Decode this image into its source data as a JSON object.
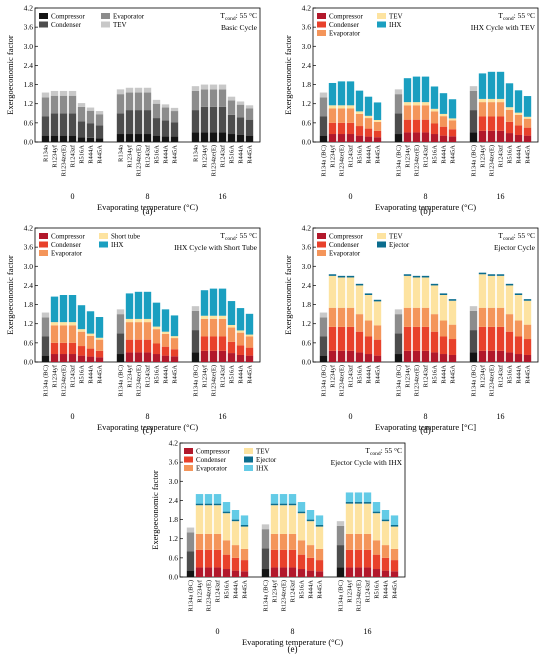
{
  "figure": {
    "panel_labels": [
      "(a)",
      "(b)",
      "(c)",
      "(d)",
      "(e)"
    ]
  },
  "colors": {
    "compressor_gray": "#141414",
    "condenser_gray": "#4d4d4d",
    "evaporator_gray": "#8c8c8c",
    "tev_gray": "#c8c8c8",
    "compressor": "#b2182b",
    "condenser": "#e8412b",
    "evaporator": "#f4955a",
    "tev": "#fde3a0",
    "short_tube": "#fde3a0",
    "ejector": "#0b6d8e",
    "ihx_b": "#1a9fc0",
    "ihx_e": "#63cbe6",
    "bc_compressor": "#141414",
    "bc_condenser": "#4d4d4d",
    "bc_evaporator": "#8c8c8c",
    "bc_tev": "#c8c8c8"
  },
  "chart_data": [
    {
      "type": "bar",
      "stacked": true,
      "panel": "(a)",
      "title": "Basic Cycle",
      "condition": "T",
      "condition_sub": "cond",
      "condition_val": ": 55 °C",
      "xlabel": "Evaporating temperature (°C)",
      "ylabel": "Exergoeconomic factor",
      "ylim": [
        0,
        4.2
      ],
      "yticks": [
        "0.0",
        "0.6",
        "1.2",
        "1.8",
        "2.4",
        "3.0",
        "3.6",
        "4.2"
      ],
      "groups": [
        "0",
        "8",
        "16"
      ],
      "categories": [
        "R134a",
        "R1234yf",
        "R1234ze(E)",
        "R1243zf",
        "R516A",
        "R444A",
        "R445A"
      ],
      "legend_placement": "top-left",
      "series": [
        {
          "name": "Compressor",
          "color": "compressor_gray",
          "values": [
            [
              0.2,
              0.2,
              0.2,
              0.2,
              0.15,
              0.13,
              0.12
            ],
            [
              0.25,
              0.25,
              0.25,
              0.25,
              0.2,
              0.18,
              0.17
            ],
            [
              0.3,
              0.3,
              0.3,
              0.3,
              0.25,
              0.22,
              0.2
            ]
          ]
        },
        {
          "name": "Condenser",
          "color": "condenser_gray",
          "values": [
            [
              0.6,
              0.7,
              0.7,
              0.7,
              0.5,
              0.45,
              0.4
            ],
            [
              0.65,
              0.75,
              0.75,
              0.75,
              0.55,
              0.5,
              0.45
            ],
            [
              0.7,
              0.8,
              0.8,
              0.8,
              0.6,
              0.55,
              0.5
            ]
          ]
        },
        {
          "name": "Evaporator",
          "color": "evaporator_gray",
          "values": [
            [
              0.6,
              0.55,
              0.55,
              0.55,
              0.45,
              0.4,
              0.35
            ],
            [
              0.6,
              0.55,
              0.55,
              0.55,
              0.45,
              0.4,
              0.35
            ],
            [
              0.6,
              0.55,
              0.55,
              0.55,
              0.45,
              0.4,
              0.35
            ]
          ]
        },
        {
          "name": "TEV",
          "color": "tev_gray",
          "values": [
            [
              0.15,
              0.15,
              0.15,
              0.15,
              0.12,
              0.1,
              0.1
            ],
            [
              0.15,
              0.15,
              0.15,
              0.15,
              0.12,
              0.1,
              0.1
            ],
            [
              0.15,
              0.15,
              0.15,
              0.15,
              0.12,
              0.1,
              0.1
            ]
          ]
        }
      ]
    },
    {
      "type": "bar",
      "stacked": true,
      "panel": "(b)",
      "title": "IHX Cycle with TEV",
      "condition": "T",
      "condition_sub": "cond",
      "condition_val": ": 55 °C",
      "xlabel": "Evaporating temperature (°C)",
      "ylabel": "Exergoeconomic factor",
      "ylim": [
        0,
        4.2
      ],
      "yticks": [
        "0.0",
        "0.6",
        "1.2",
        "1.8",
        "2.4",
        "3.0",
        "3.6",
        "4.2"
      ],
      "groups": [
        "0",
        "8",
        "16"
      ],
      "categories": [
        "R134a (BC)",
        "R1234yf",
        "R1234ze(E)",
        "R1243zf",
        "R516A",
        "R444A",
        "R445A"
      ],
      "legend_placement": "top-left",
      "series": [
        {
          "name": "Compressor",
          "color": "compressor",
          "values": [
            [
              0.2,
              0.25,
              0.25,
              0.25,
              0.2,
              0.17,
              0.15
            ],
            [
              0.25,
              0.3,
              0.3,
              0.3,
              0.25,
              0.2,
              0.18
            ],
            [
              0.3,
              0.35,
              0.35,
              0.35,
              0.28,
              0.22,
              0.2
            ]
          ]
        },
        {
          "name": "Condenser",
          "color": "condenser",
          "values": [
            [
              0.6,
              0.35,
              0.35,
              0.35,
              0.3,
              0.25,
              0.2
            ],
            [
              0.65,
              0.4,
              0.4,
              0.4,
              0.33,
              0.28,
              0.22
            ],
            [
              0.7,
              0.45,
              0.45,
              0.45,
              0.35,
              0.3,
              0.25
            ]
          ]
        },
        {
          "name": "Evaporator",
          "color": "evaporator",
          "values": [
            [
              0.6,
              0.45,
              0.45,
              0.45,
              0.38,
              0.33,
              0.28
            ],
            [
              0.6,
              0.45,
              0.45,
              0.45,
              0.38,
              0.33,
              0.28
            ],
            [
              0.6,
              0.45,
              0.45,
              0.45,
              0.38,
              0.33,
              0.28
            ]
          ]
        },
        {
          "name": "TEV",
          "color": "tev",
          "values": [
            [
              0.15,
              0.1,
              0.1,
              0.1,
              0.08,
              0.07,
              0.06
            ],
            [
              0.15,
              0.1,
              0.1,
              0.1,
              0.08,
              0.07,
              0.06
            ],
            [
              0.15,
              0.1,
              0.1,
              0.1,
              0.08,
              0.07,
              0.06
            ]
          ]
        },
        {
          "name": "IHX",
          "color": "ihx_b",
          "values": [
            [
              0,
              0.7,
              0.75,
              0.75,
              0.65,
              0.6,
              0.55
            ],
            [
              0,
              0.75,
              0.8,
              0.8,
              0.7,
              0.65,
              0.6
            ],
            [
              0,
              0.8,
              0.85,
              0.85,
              0.75,
              0.7,
              0.65
            ]
          ]
        }
      ]
    },
    {
      "type": "bar",
      "stacked": true,
      "panel": "(c)",
      "title": "IHX Cycle with Short Tube",
      "condition": "T",
      "condition_sub": "cond",
      "condition_val": ": 55 °C",
      "xlabel": "Evaporating temperature (°C)",
      "ylabel": "Exergoeconomic factor",
      "ylim": [
        0,
        4.2
      ],
      "yticks": [
        "0.0",
        "0.6",
        "1.2",
        "1.8",
        "2.4",
        "3.0",
        "3.6",
        "4.2"
      ],
      "groups": [
        "0",
        "8",
        "16"
      ],
      "categories": [
        "R134a (BC)",
        "R1234yf",
        "R1234ze(E)",
        "R1243zf",
        "R516A",
        "R444A",
        "R445A"
      ],
      "legend_placement": "top-left",
      "series": [
        {
          "name": "Compressor",
          "color": "compressor",
          "values": [
            [
              0.2,
              0.25,
              0.25,
              0.25,
              0.2,
              0.17,
              0.15
            ],
            [
              0.25,
              0.3,
              0.3,
              0.3,
              0.25,
              0.2,
              0.18
            ],
            [
              0.3,
              0.35,
              0.35,
              0.35,
              0.28,
              0.22,
              0.2
            ]
          ]
        },
        {
          "name": "Condenser",
          "color": "condenser",
          "values": [
            [
              0.6,
              0.35,
              0.35,
              0.35,
              0.3,
              0.25,
              0.2
            ],
            [
              0.65,
              0.4,
              0.4,
              0.4,
              0.33,
              0.28,
              0.22
            ],
            [
              0.7,
              0.45,
              0.45,
              0.45,
              0.35,
              0.3,
              0.25
            ]
          ]
        },
        {
          "name": "Evaporator",
          "color": "evaporator",
          "values": [
            [
              0.6,
              0.55,
              0.55,
              0.55,
              0.45,
              0.4,
              0.35
            ],
            [
              0.6,
              0.55,
              0.55,
              0.55,
              0.45,
              0.4,
              0.35
            ],
            [
              0.6,
              0.55,
              0.55,
              0.55,
              0.45,
              0.4,
              0.35
            ]
          ]
        },
        {
          "name": "Short tube",
          "color": "short_tube",
          "values": [
            [
              0.15,
              0.1,
              0.1,
              0.1,
              0.08,
              0.07,
              0.06
            ],
            [
              0.15,
              0.1,
              0.1,
              0.1,
              0.08,
              0.07,
              0.06
            ],
            [
              0.15,
              0.1,
              0.1,
              0.1,
              0.08,
              0.07,
              0.06
            ]
          ]
        },
        {
          "name": "IHX",
          "color": "ihx_b",
          "values": [
            [
              0,
              0.8,
              0.85,
              0.85,
              0.75,
              0.7,
              0.65
            ],
            [
              0,
              0.8,
              0.85,
              0.85,
              0.75,
              0.7,
              0.65
            ],
            [
              0,
              0.8,
              0.85,
              0.85,
              0.75,
              0.7,
              0.65
            ]
          ]
        }
      ]
    },
    {
      "type": "bar",
      "stacked": true,
      "panel": "(d)",
      "title": "Ejector Cycle",
      "condition": "T",
      "condition_sub": "cond",
      "condition_val": ": 55 °C",
      "xlabel": "Evaporating temperature [°C]",
      "ylabel": "Exergoeconomic factor",
      "ylim": [
        0,
        4.2
      ],
      "yticks": [
        "0.0",
        "0.6",
        "1.2",
        "1.8",
        "2.4",
        "3.0",
        "3.6",
        "4.2"
      ],
      "groups": [
        "0",
        "8",
        "16"
      ],
      "categories": [
        "R134a (BC)",
        "R1234yf",
        "R1234ze(E)",
        "R1243zf",
        "R516A",
        "R444A",
        "R445A"
      ],
      "legend_placement": "top-left",
      "series": [
        {
          "name": "Compressor",
          "color": "compressor",
          "values": [
            [
              0.2,
              0.35,
              0.35,
              0.35,
              0.3,
              0.25,
              0.2
            ],
            [
              0.25,
              0.35,
              0.35,
              0.35,
              0.3,
              0.25,
              0.22
            ],
            [
              0.3,
              0.35,
              0.35,
              0.35,
              0.3,
              0.25,
              0.22
            ]
          ]
        },
        {
          "name": "Condenser",
          "color": "condenser",
          "values": [
            [
              0.6,
              0.75,
              0.75,
              0.75,
              0.65,
              0.55,
              0.5
            ],
            [
              0.65,
              0.75,
              0.75,
              0.75,
              0.65,
              0.55,
              0.5
            ],
            [
              0.7,
              0.75,
              0.75,
              0.75,
              0.65,
              0.55,
              0.5
            ]
          ]
        },
        {
          "name": "Evaporator",
          "color": "evaporator",
          "values": [
            [
              0.6,
              0.6,
              0.6,
              0.6,
              0.55,
              0.5,
              0.45
            ],
            [
              0.6,
              0.6,
              0.6,
              0.6,
              0.55,
              0.5,
              0.45
            ],
            [
              0.6,
              0.6,
              0.6,
              0.6,
              0.55,
              0.5,
              0.45
            ]
          ]
        },
        {
          "name": "TEV",
          "color": "tev",
          "values": [
            [
              0.15,
              1.0,
              0.95,
              0.95,
              0.9,
              0.8,
              0.75
            ],
            [
              0.15,
              1.0,
              0.95,
              0.95,
              0.9,
              0.8,
              0.75
            ],
            [
              0.15,
              1.05,
              1.0,
              1.0,
              0.9,
              0.8,
              0.75
            ]
          ]
        },
        {
          "name": "Ejector",
          "color": "ejector",
          "values": [
            [
              0,
              0.05,
              0.05,
              0.05,
              0.05,
              0.05,
              0.05
            ],
            [
              0,
              0.05,
              0.05,
              0.05,
              0.05,
              0.05,
              0.05
            ],
            [
              0,
              0.05,
              0.05,
              0.05,
              0.05,
              0.05,
              0.05
            ]
          ]
        }
      ]
    },
    {
      "type": "bar",
      "stacked": true,
      "panel": "(e)",
      "title": "Ejector Cycle with IHX",
      "condition": "T",
      "condition_sub": "cond",
      "condition_val": ": 55 °C",
      "xlabel": "Evaporating temperature (°C)",
      "ylabel": "Exergoeconomic factor",
      "ylim": [
        0,
        4.2
      ],
      "yticks": [
        "0.0",
        "0.6",
        "1.2",
        "1.8",
        "2.4",
        "3.0",
        "3.6",
        "4.2"
      ],
      "groups": [
        "0",
        "8",
        "16"
      ],
      "categories": [
        "R134a (BC)",
        "R1234yf",
        "R1234ze(E)",
        "R1243zf",
        "R516A",
        "R444A",
        "R445A"
      ],
      "legend_placement": "top-left",
      "series": [
        {
          "name": "Compressor",
          "color": "compressor",
          "values": [
            [
              0.2,
              0.3,
              0.3,
              0.3,
              0.25,
              0.2,
              0.18
            ],
            [
              0.25,
              0.3,
              0.3,
              0.3,
              0.25,
              0.2,
              0.18
            ],
            [
              0.3,
              0.3,
              0.3,
              0.3,
              0.25,
              0.2,
              0.18
            ]
          ]
        },
        {
          "name": "Condenser",
          "color": "condenser",
          "values": [
            [
              0.6,
              0.55,
              0.55,
              0.55,
              0.45,
              0.4,
              0.35
            ],
            [
              0.65,
              0.55,
              0.55,
              0.55,
              0.45,
              0.4,
              0.35
            ],
            [
              0.7,
              0.55,
              0.55,
              0.55,
              0.45,
              0.4,
              0.35
            ]
          ]
        },
        {
          "name": "Evaporator",
          "color": "evaporator",
          "values": [
            [
              0.6,
              0.5,
              0.5,
              0.5,
              0.45,
              0.4,
              0.35
            ],
            [
              0.6,
              0.5,
              0.5,
              0.5,
              0.45,
              0.4,
              0.35
            ],
            [
              0.6,
              0.5,
              0.5,
              0.5,
              0.45,
              0.4,
              0.35
            ]
          ]
        },
        {
          "name": "TEV",
          "color": "tev",
          "values": [
            [
              0.15,
              0.9,
              0.9,
              0.9,
              0.85,
              0.75,
              0.7
            ],
            [
              0.15,
              0.9,
              0.9,
              0.9,
              0.85,
              0.75,
              0.7
            ],
            [
              0.15,
              0.95,
              0.95,
              0.95,
              0.85,
              0.75,
              0.7
            ]
          ]
        },
        {
          "name": "Ejector",
          "color": "ejector",
          "values": [
            [
              0,
              0.05,
              0.05,
              0.05,
              0.05,
              0.05,
              0.05
            ],
            [
              0,
              0.05,
              0.05,
              0.05,
              0.05,
              0.05,
              0.05
            ],
            [
              0,
              0.05,
              0.05,
              0.05,
              0.05,
              0.05,
              0.05
            ]
          ]
        },
        {
          "name": "IHX",
          "color": "ihx_e",
          "values": [
            [
              0,
              0.3,
              0.3,
              0.3,
              0.3,
              0.3,
              0.3
            ],
            [
              0,
              0.3,
              0.3,
              0.3,
              0.3,
              0.3,
              0.3
            ],
            [
              0,
              0.3,
              0.3,
              0.3,
              0.3,
              0.3,
              0.3
            ]
          ]
        }
      ]
    }
  ]
}
